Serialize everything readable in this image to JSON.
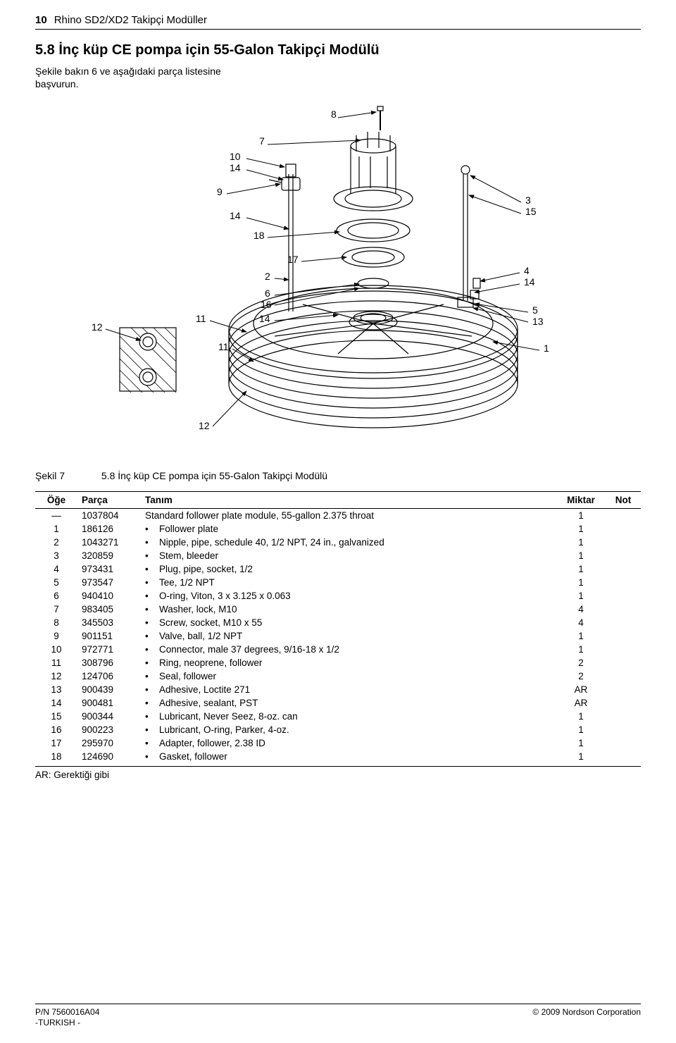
{
  "header": {
    "page_number": "10",
    "doc_title": "Rhino SD2/XD2 Takipçi Modüller"
  },
  "section": {
    "title": "5.8 İnç küp CE pompa için 55-Galon Takipçi Modülü",
    "sub1": "Şekile bakın 6 ve aşağıdaki parça listesine",
    "sub2": "başvurun."
  },
  "figure": {
    "label": "Şekil 7",
    "caption": "5.8 İnç küp CE pompa için 55-Galon Takipçi Modülü",
    "callouts": {
      "c8": "8",
      "c7": "7",
      "c10": "10",
      "c14a": "14",
      "c9": "9",
      "c14b": "14",
      "c18": "18",
      "c3": "3",
      "c15": "15",
      "c17": "17",
      "c2": "2",
      "c4": "4",
      "c14c": "14",
      "c6": "6",
      "c16": "16",
      "c5": "5",
      "c13": "13",
      "c11a": "11",
      "c14d": "14",
      "c11b": "11",
      "c1": "1",
      "c12a": "12",
      "c12b": "12"
    }
  },
  "table": {
    "headers": {
      "item": "Öğe",
      "part": "Parça",
      "desc": "Tanım",
      "qty": "Miktar",
      "note": "Not"
    },
    "rows": [
      {
        "item": "—",
        "part": "1037804",
        "desc": "Standard follower plate module, 55-gallon 2.375 throat",
        "qty": "1",
        "note": "",
        "indent": 0
      },
      {
        "item": "1",
        "part": "186126",
        "desc": "Follower plate",
        "qty": "1",
        "note": "",
        "indent": 1
      },
      {
        "item": "2",
        "part": "1043271",
        "desc": "Nipple, pipe, schedule 40, 1/2 NPT, 24 in., galvanized",
        "qty": "1",
        "note": "",
        "indent": 1
      },
      {
        "item": "3",
        "part": "320859",
        "desc": "Stem, bleeder",
        "qty": "1",
        "note": "",
        "indent": 1
      },
      {
        "item": "4",
        "part": "973431",
        "desc": "Plug, pipe, socket, 1/2",
        "qty": "1",
        "note": "",
        "indent": 1
      },
      {
        "item": "5",
        "part": "973547",
        "desc": "Tee, 1/2 NPT",
        "qty": "1",
        "note": "",
        "indent": 1
      },
      {
        "item": "6",
        "part": "940410",
        "desc": "O-ring, Viton, 3 x 3.125 x 0.063",
        "qty": "1",
        "note": "",
        "indent": 1
      },
      {
        "item": "7",
        "part": "983405",
        "desc": "Washer, lock, M10",
        "qty": "4",
        "note": "",
        "indent": 1
      },
      {
        "item": "8",
        "part": "345503",
        "desc": "Screw, socket, M10 x 55",
        "qty": "4",
        "note": "",
        "indent": 1
      },
      {
        "item": "9",
        "part": "901151",
        "desc": "Valve, ball, 1/2 NPT",
        "qty": "1",
        "note": "",
        "indent": 1
      },
      {
        "item": "10",
        "part": "972771",
        "desc": "Connector, male 37 degrees, 9/16-18 x 1/2",
        "qty": "1",
        "note": "",
        "indent": 1
      },
      {
        "item": "11",
        "part": "308796",
        "desc": "Ring, neoprene, follower",
        "qty": "2",
        "note": "",
        "indent": 1
      },
      {
        "item": "12",
        "part": "124706",
        "desc": "Seal, follower",
        "qty": "2",
        "note": "",
        "indent": 1
      },
      {
        "item": "13",
        "part": "900439",
        "desc": "Adhesive, Loctite 271",
        "qty": "AR",
        "note": "",
        "indent": 1
      },
      {
        "item": "14",
        "part": "900481",
        "desc": "Adhesive, sealant, PST",
        "qty": "AR",
        "note": "",
        "indent": 1
      },
      {
        "item": "15",
        "part": "900344",
        "desc": "Lubricant, Never Seez, 8-oz. can",
        "qty": "1",
        "note": "",
        "indent": 1
      },
      {
        "item": "16",
        "part": "900223",
        "desc": "Lubricant, O-ring, Parker, 4-oz.",
        "qty": "1",
        "note": "",
        "indent": 1
      },
      {
        "item": "17",
        "part": "295970",
        "desc": "Adapter, follower, 2.38 ID",
        "qty": "1",
        "note": "",
        "indent": 1
      },
      {
        "item": "18",
        "part": "124690",
        "desc": "Gasket, follower",
        "qty": "1",
        "note": "",
        "indent": 1
      }
    ],
    "ar_note": "AR:  Gerektiği gibi"
  },
  "footer": {
    "pn": "P/N 7560016A04",
    "lang": "-TURKISH -",
    "copyright": "© 2009 Nordson Corporation"
  },
  "style": {
    "line_color": "#000000",
    "bg": "#ffffff"
  }
}
